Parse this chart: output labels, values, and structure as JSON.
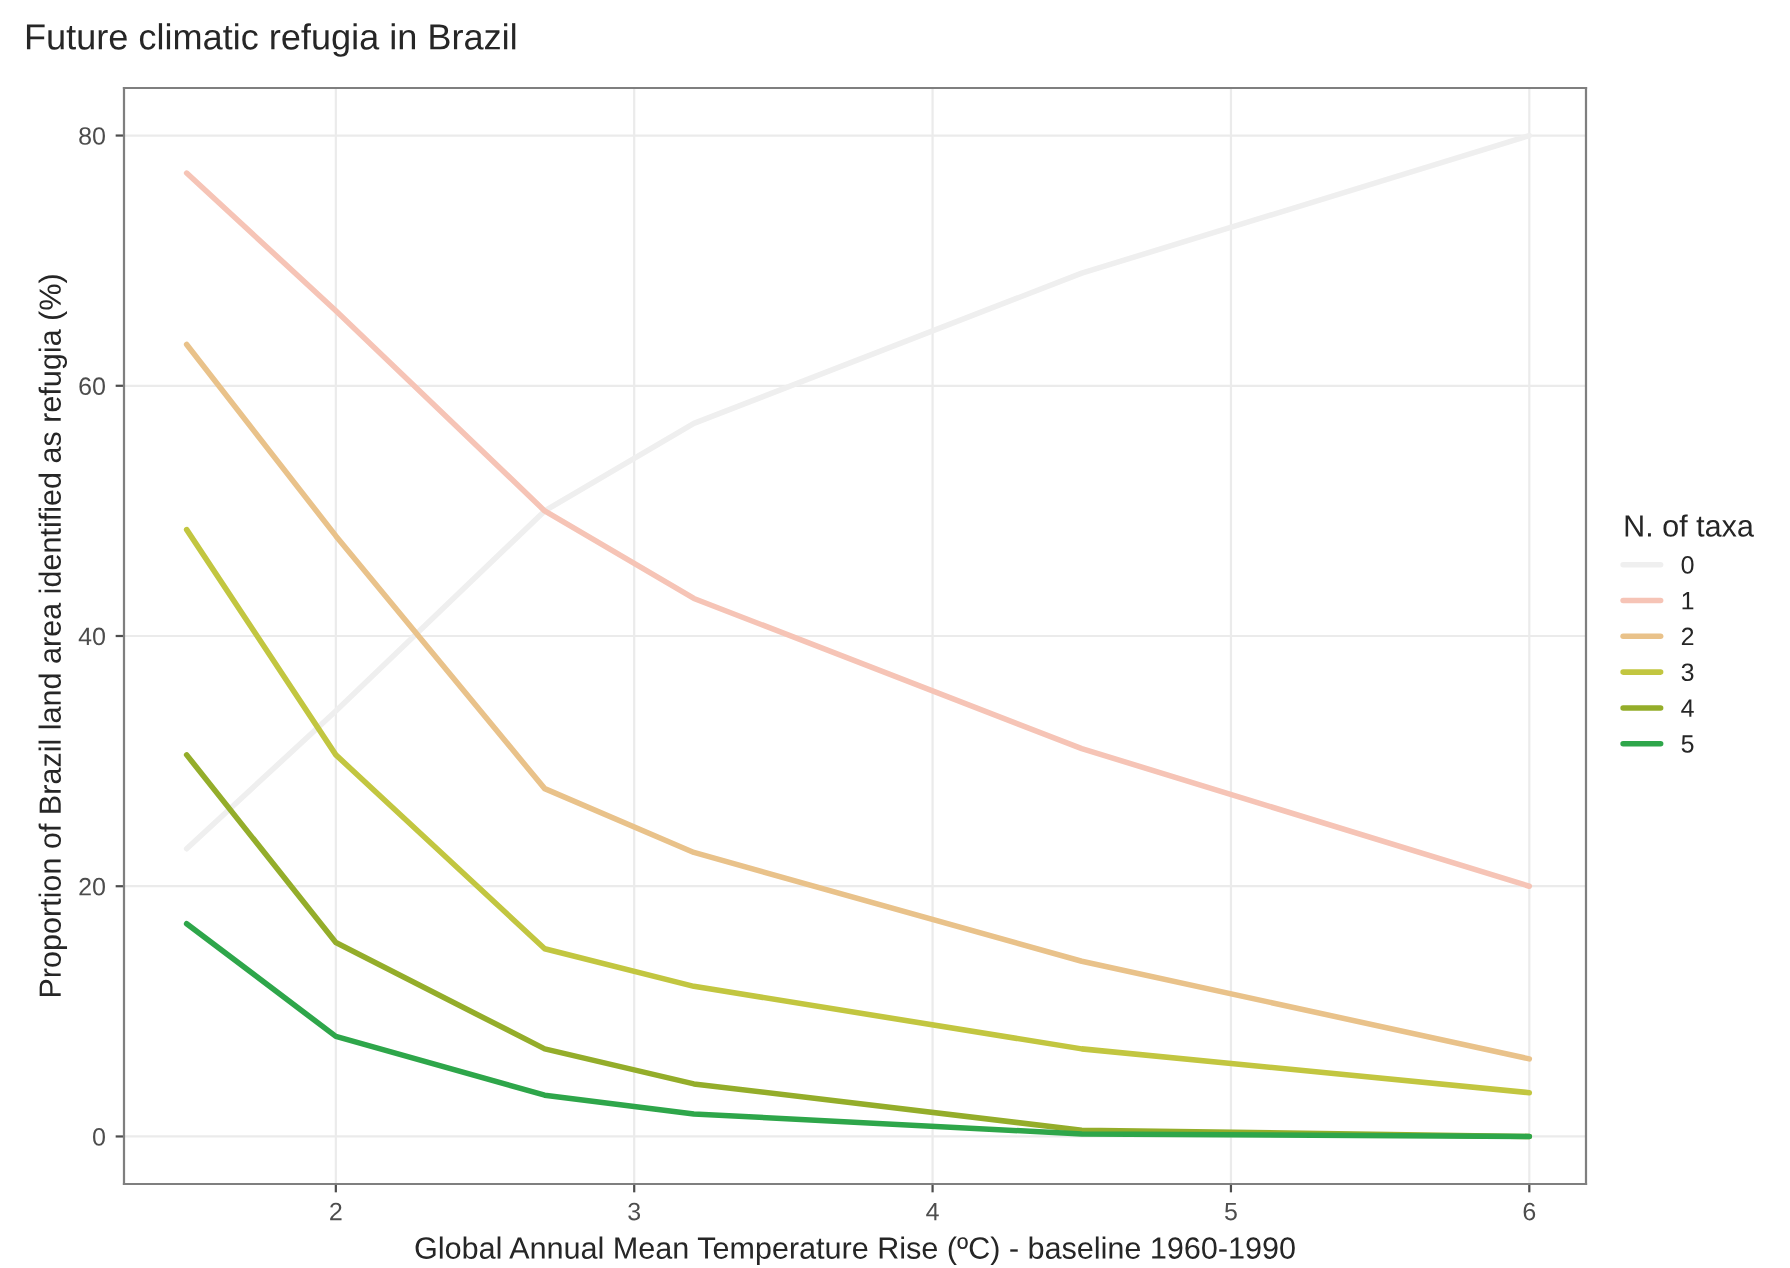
{
  "chart_data": {
    "type": "line",
    "title": "Future climatic refugia in Brazil",
    "xlabel": "Global Annual Mean Temperature Rise (ºC) - baseline 1960-1990",
    "ylabel": "Proportion of Brazil land area identified as refugia (%)",
    "legend_title": "N. of taxa",
    "legend": "right",
    "x": [
      1.5,
      2,
      2.7,
      3.2,
      4.5,
      6
    ],
    "series": [
      {
        "name": "0",
        "color": "#efefef",
        "values": [
          23,
          34,
          50,
          57,
          69,
          80
        ]
      },
      {
        "name": "1",
        "color": "#f6c4b6",
        "values": [
          77,
          66,
          50,
          43,
          31,
          20
        ]
      },
      {
        "name": "2",
        "color": "#e9c28a",
        "values": [
          63.3,
          48,
          27.8,
          22.7,
          14,
          6.2
        ]
      },
      {
        "name": "3",
        "color": "#c2c640",
        "values": [
          48.5,
          30.5,
          15,
          12,
          7,
          3.5
        ]
      },
      {
        "name": "4",
        "color": "#94ad2a",
        "values": [
          30.5,
          15.5,
          7,
          4.2,
          0.5,
          0
        ]
      },
      {
        "name": "5",
        "color": "#2ea64a",
        "values": [
          17,
          8,
          3.3,
          1.8,
          0.2,
          0
        ]
      }
    ],
    "xlim": [
      1.29,
      6.19
    ],
    "ylim": [
      -3.8,
      83.8
    ],
    "xticks": [
      2,
      3,
      4,
      5,
      6
    ],
    "yticks": [
      0,
      20,
      40,
      60,
      80
    ],
    "grid": true
  }
}
